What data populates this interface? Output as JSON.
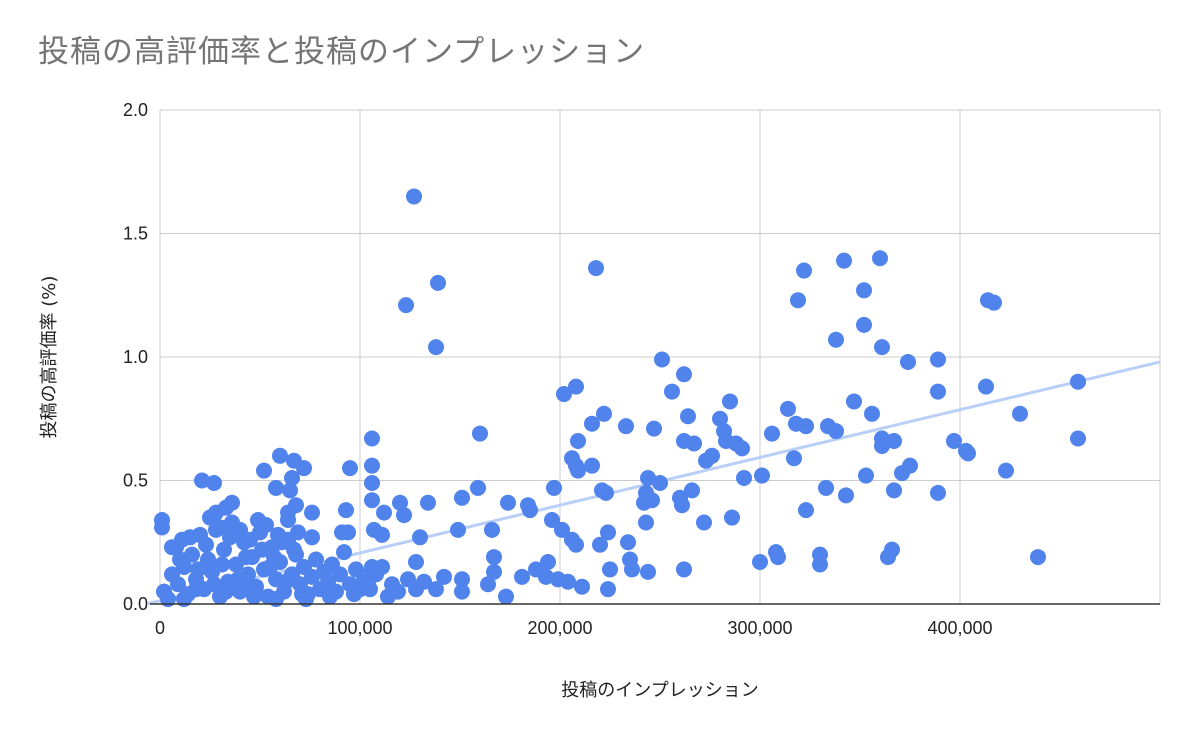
{
  "chart_data": {
    "type": "scatter",
    "title": "投稿の高評価率と投稿のインプレッション",
    "xlabel": "投稿のインプレッション",
    "ylabel": "投稿の高評価率 (%)",
    "xlim": [
      0,
      500000
    ],
    "ylim": [
      0,
      2.0
    ],
    "x_ticks": [
      0,
      100000,
      200000,
      300000,
      400000
    ],
    "x_tick_labels": [
      "0",
      "100,000",
      "200,000",
      "300,000",
      "400,000"
    ],
    "y_ticks": [
      0,
      0.5,
      1.0,
      1.5,
      2.0
    ],
    "y_tick_labels": [
      "0.0",
      "0.5",
      "1.0",
      "1.5",
      "2.0"
    ],
    "grid": true,
    "legend": "none",
    "colors": {
      "points": "#5083ec",
      "trendline": "#b9cff8",
      "grid": "#cccccc",
      "title": "#757575"
    },
    "trendline": {
      "type": "linear",
      "points": [
        [
          0,
          0.01
        ],
        [
          500000,
          0.98
        ]
      ]
    },
    "points": [
      [
        127000,
        1.65
      ],
      [
        218000,
        1.36
      ],
      [
        139000,
        1.3
      ],
      [
        123000,
        1.21
      ],
      [
        138000,
        1.04
      ],
      [
        360000,
        1.4
      ],
      [
        342000,
        1.39
      ],
      [
        322000,
        1.35
      ],
      [
        352000,
        1.27
      ],
      [
        319000,
        1.23
      ],
      [
        414000,
        1.23
      ],
      [
        417000,
        1.22
      ],
      [
        352000,
        1.13
      ],
      [
        338000,
        1.07
      ],
      [
        361000,
        1.04
      ],
      [
        251000,
        0.99
      ],
      [
        389000,
        0.99
      ],
      [
        374000,
        0.98
      ],
      [
        208000,
        0.88
      ],
      [
        202000,
        0.85
      ],
      [
        262000,
        0.93
      ],
      [
        256000,
        0.86
      ],
      [
        413000,
        0.88
      ],
      [
        389000,
        0.86
      ],
      [
        459000,
        0.9
      ],
      [
        285000,
        0.82
      ],
      [
        347000,
        0.82
      ],
      [
        222000,
        0.77
      ],
      [
        264000,
        0.76
      ],
      [
        314000,
        0.79
      ],
      [
        356000,
        0.77
      ],
      [
        280000,
        0.75
      ],
      [
        430000,
        0.77
      ],
      [
        216000,
        0.73
      ],
      [
        233000,
        0.72
      ],
      [
        247000,
        0.71
      ],
      [
        318000,
        0.73
      ],
      [
        323000,
        0.72
      ],
      [
        334000,
        0.72
      ],
      [
        338000,
        0.7
      ],
      [
        282000,
        0.7
      ],
      [
        306000,
        0.69
      ],
      [
        160000,
        0.69
      ],
      [
        106000,
        0.67
      ],
      [
        209000,
        0.66
      ],
      [
        262000,
        0.66
      ],
      [
        267000,
        0.65
      ],
      [
        283000,
        0.66
      ],
      [
        288000,
        0.65
      ],
      [
        291000,
        0.63
      ],
      [
        361000,
        0.67
      ],
      [
        367000,
        0.66
      ],
      [
        361000,
        0.64
      ],
      [
        397000,
        0.66
      ],
      [
        459000,
        0.67
      ],
      [
        403000,
        0.62
      ],
      [
        404000,
        0.61
      ],
      [
        276000,
        0.6
      ],
      [
        273000,
        0.58
      ],
      [
        317000,
        0.59
      ],
      [
        206000,
        0.59
      ],
      [
        208000,
        0.56
      ],
      [
        209000,
        0.54
      ],
      [
        216000,
        0.56
      ],
      [
        375000,
        0.56
      ],
      [
        371000,
        0.53
      ],
      [
        353000,
        0.52
      ],
      [
        423000,
        0.54
      ],
      [
        301000,
        0.52
      ],
      [
        292000,
        0.51
      ],
      [
        244000,
        0.51
      ],
      [
        250000,
        0.49
      ],
      [
        333000,
        0.47
      ],
      [
        367000,
        0.46
      ],
      [
        389000,
        0.45
      ],
      [
        343000,
        0.44
      ],
      [
        266000,
        0.46
      ],
      [
        221000,
        0.46
      ],
      [
        223000,
        0.45
      ],
      [
        197000,
        0.47
      ],
      [
        243000,
        0.45
      ],
      [
        246000,
        0.42
      ],
      [
        242000,
        0.41
      ],
      [
        260000,
        0.43
      ],
      [
        261000,
        0.4
      ],
      [
        323000,
        0.38
      ],
      [
        286000,
        0.35
      ],
      [
        243000,
        0.33
      ],
      [
        272000,
        0.33
      ],
      [
        196000,
        0.34
      ],
      [
        184000,
        0.4
      ],
      [
        185000,
        0.38
      ],
      [
        174000,
        0.41
      ],
      [
        159000,
        0.47
      ],
      [
        151000,
        0.43
      ],
      [
        134000,
        0.41
      ],
      [
        120000,
        0.41
      ],
      [
        122000,
        0.36
      ],
      [
        149000,
        0.3
      ],
      [
        166000,
        0.3
      ],
      [
        201000,
        0.3
      ],
      [
        224000,
        0.29
      ],
      [
        130000,
        0.27
      ],
      [
        111000,
        0.28
      ],
      [
        206000,
        0.26
      ],
      [
        208000,
        0.24
      ],
      [
        220000,
        0.24
      ],
      [
        234000,
        0.25
      ],
      [
        167000,
        0.19
      ],
      [
        235000,
        0.18
      ],
      [
        300000,
        0.17
      ],
      [
        308000,
        0.21
      ],
      [
        309000,
        0.19
      ],
      [
        330000,
        0.2
      ],
      [
        330000,
        0.16
      ],
      [
        366000,
        0.22
      ],
      [
        364000,
        0.19
      ],
      [
        439000,
        0.19
      ],
      [
        262000,
        0.14
      ],
      [
        225000,
        0.14
      ],
      [
        236000,
        0.14
      ],
      [
        244000,
        0.13
      ],
      [
        199000,
        0.1
      ],
      [
        204000,
        0.09
      ],
      [
        211000,
        0.07
      ],
      [
        224000,
        0.06
      ],
      [
        188000,
        0.14
      ],
      [
        194000,
        0.17
      ],
      [
        193000,
        0.11
      ],
      [
        181000,
        0.11
      ],
      [
        173000,
        0.03
      ],
      [
        164000,
        0.08
      ],
      [
        167000,
        0.13
      ],
      [
        151000,
        0.1
      ],
      [
        151000,
        0.05
      ],
      [
        138000,
        0.06
      ],
      [
        128000,
        0.06
      ],
      [
        114000,
        0.03
      ],
      [
        105000,
        0.06
      ],
      [
        106000,
        0.15
      ],
      [
        111000,
        0.15
      ],
      [
        128000,
        0.17
      ],
      [
        106000,
        0.56
      ],
      [
        106000,
        0.49
      ],
      [
        106000,
        0.42
      ],
      [
        107000,
        0.3
      ],
      [
        112000,
        0.37
      ],
      [
        95000,
        0.55
      ],
      [
        93000,
        0.38
      ],
      [
        94000,
        0.29
      ],
      [
        91000,
        0.29
      ],
      [
        76000,
        0.27
      ],
      [
        76000,
        0.37
      ],
      [
        72000,
        0.55
      ],
      [
        67000,
        0.58
      ],
      [
        60000,
        0.6
      ],
      [
        52000,
        0.54
      ],
      [
        66000,
        0.51
      ],
      [
        65000,
        0.46
      ],
      [
        58000,
        0.47
      ],
      [
        68000,
        0.4
      ],
      [
        64000,
        0.37
      ],
      [
        64000,
        0.34
      ],
      [
        49000,
        0.34
      ],
      [
        33000,
        0.39
      ],
      [
        36000,
        0.41
      ],
      [
        21000,
        0.5
      ],
      [
        27000,
        0.49
      ],
      [
        28000,
        0.37
      ],
      [
        1000,
        0.34
      ],
      [
        1000,
        0.31
      ],
      [
        11000,
        0.26
      ],
      [
        6000,
        0.23
      ],
      [
        8000,
        0.23
      ],
      [
        2000,
        0.05
      ],
      [
        4000,
        0.02
      ],
      [
        6000,
        0.12
      ],
      [
        9000,
        0.08
      ],
      [
        12000,
        0.15
      ],
      [
        14000,
        0.04
      ],
      [
        16000,
        0.2
      ],
      [
        18000,
        0.1
      ],
      [
        20000,
        0.28
      ],
      [
        22000,
        0.06
      ],
      [
        24000,
        0.18
      ],
      [
        26000,
        0.13
      ],
      [
        28000,
        0.3
      ],
      [
        30000,
        0.03
      ],
      [
        32000,
        0.22
      ],
      [
        34000,
        0.09
      ],
      [
        36000,
        0.33
      ],
      [
        38000,
        0.16
      ],
      [
        40000,
        0.05
      ],
      [
        42000,
        0.25
      ],
      [
        44000,
        0.12
      ],
      [
        46000,
        0.19
      ],
      [
        48000,
        0.07
      ],
      [
        50000,
        0.29
      ],
      [
        52000,
        0.14
      ],
      [
        54000,
        0.03
      ],
      [
        56000,
        0.23
      ],
      [
        58000,
        0.1
      ],
      [
        60000,
        0.17
      ],
      [
        62000,
        0.05
      ],
      [
        64000,
        0.26
      ],
      [
        66000,
        0.12
      ],
      [
        68000,
        0.2
      ],
      [
        70000,
        0.08
      ],
      [
        72000,
        0.15
      ],
      [
        74000,
        0.04
      ],
      [
        76000,
        0.11
      ],
      [
        78000,
        0.18
      ],
      [
        80000,
        0.06
      ],
      [
        82000,
        0.13
      ],
      [
        84000,
        0.09
      ],
      [
        86000,
        0.16
      ],
      [
        88000,
        0.05
      ],
      [
        90000,
        0.12
      ],
      [
        92000,
        0.21
      ],
      [
        95000,
        0.08
      ],
      [
        98000,
        0.14
      ],
      [
        100000,
        0.06
      ],
      [
        10000,
        0.18
      ],
      [
        15000,
        0.27
      ],
      [
        19000,
        0.14
      ],
      [
        23000,
        0.24
      ],
      [
        27000,
        0.08
      ],
      [
        31000,
        0.16
      ],
      [
        35000,
        0.27
      ],
      [
        39000,
        0.1
      ],
      [
        43000,
        0.19
      ],
      [
        47000,
        0.03
      ],
      [
        51000,
        0.22
      ],
      [
        55000,
        0.15
      ],
      [
        59000,
        0.28
      ],
      [
        63000,
        0.09
      ],
      [
        67000,
        0.22
      ],
      [
        71000,
        0.04
      ],
      [
        25000,
        0.35
      ],
      [
        30000,
        0.31
      ],
      [
        40000,
        0.3
      ],
      [
        45000,
        0.26
      ],
      [
        53000,
        0.32
      ],
      [
        57000,
        0.19
      ],
      [
        61000,
        0.25
      ],
      [
        69000,
        0.29
      ],
      [
        12000,
        0.02
      ],
      [
        18000,
        0.06
      ],
      [
        33000,
        0.05
      ],
      [
        44000,
        0.07
      ],
      [
        58000,
        0.02
      ],
      [
        73000,
        0.02
      ],
      [
        85000,
        0.03
      ],
      [
        97000,
        0.04
      ],
      [
        102000,
        0.11
      ],
      [
        104000,
        0.09
      ],
      [
        108000,
        0.12
      ],
      [
        116000,
        0.08
      ],
      [
        119000,
        0.05
      ],
      [
        124000,
        0.1
      ],
      [
        132000,
        0.09
      ],
      [
        142000,
        0.11
      ]
    ]
  }
}
